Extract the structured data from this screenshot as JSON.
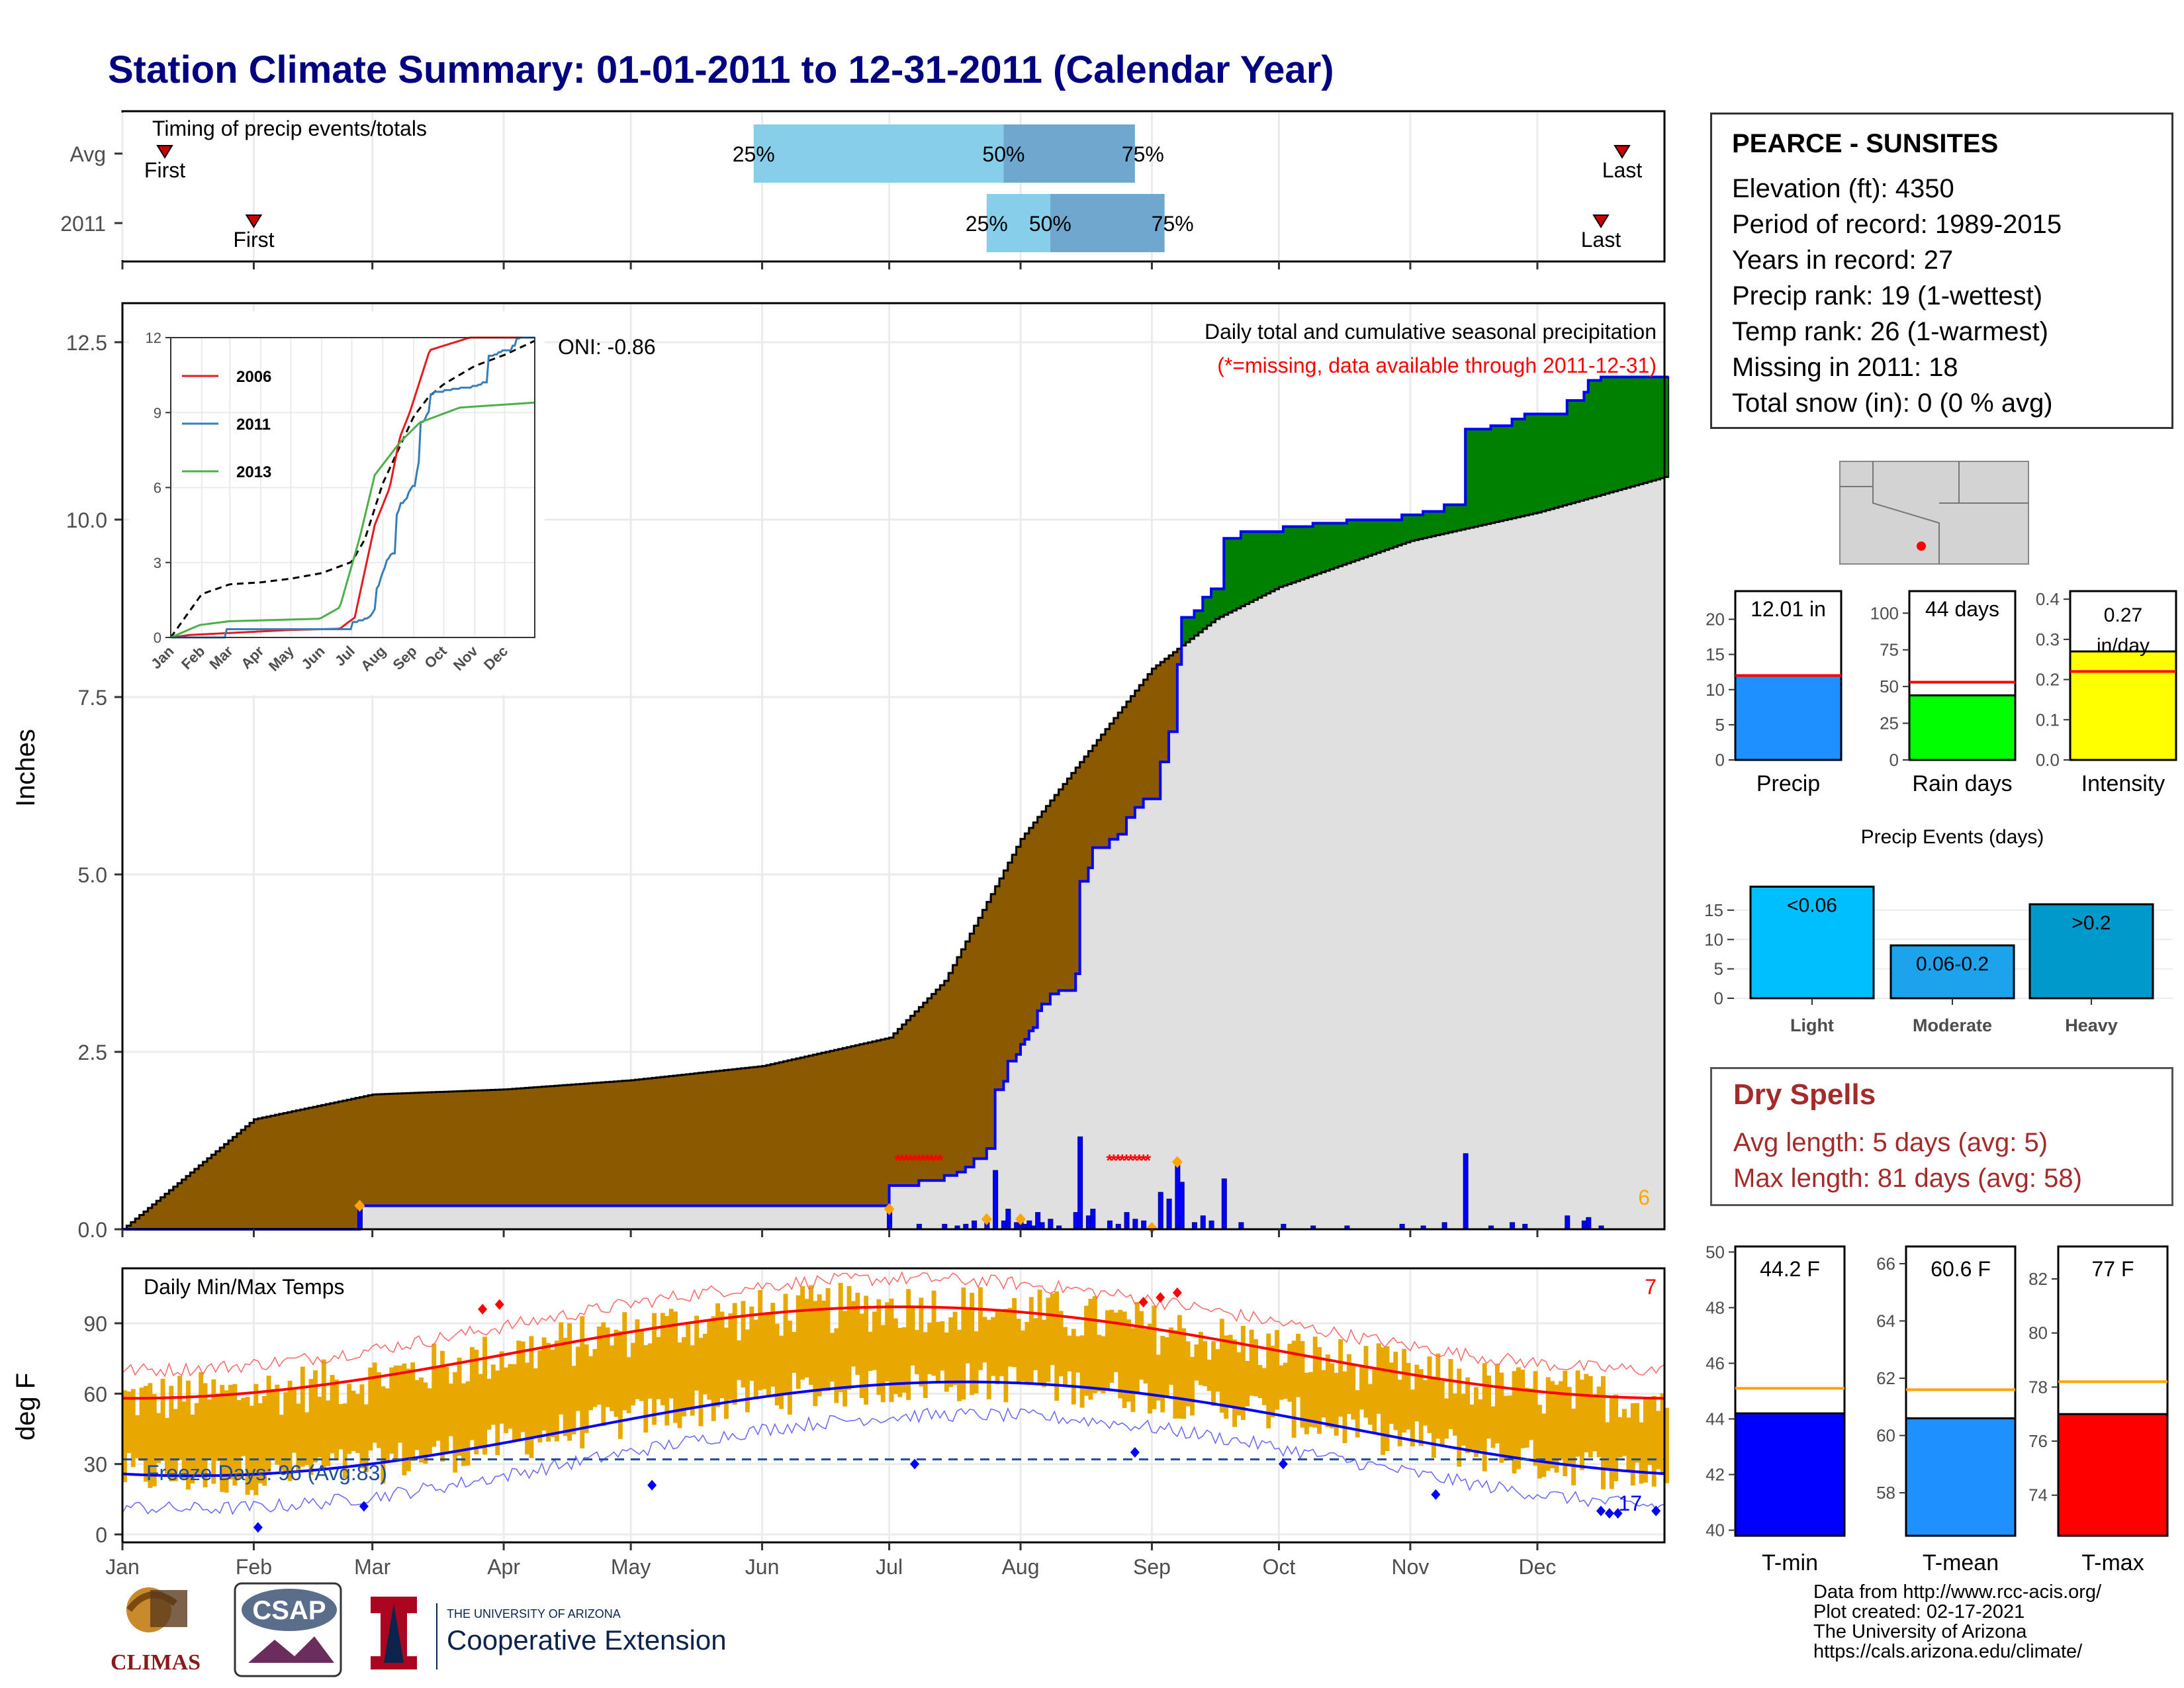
{
  "title": "Station Climate Summary: 01-01-2011 to 12-31-2011 (Calendar Year)",
  "timing": {
    "title": "Timing of precip events/totals",
    "rows": [
      {
        "label": "Avg",
        "first_day": 11,
        "last_day": 355,
        "p25_day": 150,
        "p50_day": 209,
        "p75_day": 240
      },
      {
        "label": "2011",
        "first_day": 32,
        "last_day": 350,
        "p25_day": 205,
        "p50_day": 220,
        "p75_day": 247
      }
    ],
    "first_label": "First",
    "last_label": "Last",
    "p25_label": "25%",
    "p50_label": "50%",
    "p75_label": "75%",
    "colors": {
      "q1": "#87CEEB",
      "q2": "#6FA8CF",
      "marker": "#CC0000"
    }
  },
  "precip_panel": {
    "title": "Daily total and cumulative seasonal precipitation",
    "subtitle": "(*=missing, data available through 2011-12-31)",
    "ylabel": "Inches",
    "yticks": [
      "0.0",
      "2.5",
      "5.0",
      "7.5",
      "10.0",
      "12.5"
    ],
    "oni": "ONI: -0.86",
    "count_label": "6",
    "colors": {
      "deficit": "#8B5A00",
      "surplus": "#008000",
      "normal": "#E0E0E0",
      "line": "#0000FF",
      "missing": "#FF0000",
      "extreme": "#FFA500"
    }
  },
  "inset": {
    "yticks": [
      "0",
      "3",
      "6",
      "9",
      "12"
    ],
    "xticks": [
      "Jan",
      "Feb",
      "Mar",
      "Apr",
      "May",
      "Jun",
      "Jul",
      "Aug",
      "Sep",
      "Oct",
      "Nov",
      "Dec"
    ],
    "legend": [
      {
        "name": "2006",
        "color": "#E41A1C"
      },
      {
        "name": "2011",
        "color": "#377EB8"
      },
      {
        "name": "2013",
        "color": "#4DAF4A"
      }
    ]
  },
  "temp_panel": {
    "title": "Daily Min/Max Temps",
    "ylabel": "deg F",
    "yticks": [
      "0",
      "30",
      "60",
      "90"
    ],
    "freeze_text": "Freeze Days: 96 (Avg:83)",
    "hot_count": "7",
    "cold_count": "17",
    "colors": {
      "bars": "#E8A800",
      "max": "#FF0000",
      "min": "#0000FF",
      "freeze": "#1F4E99"
    }
  },
  "months": [
    "Jan",
    "Feb",
    "Mar",
    "Apr",
    "May",
    "Jun",
    "Jul",
    "Aug",
    "Sep",
    "Oct",
    "Nov",
    "Dec"
  ],
  "station": {
    "name": "PEARCE - SUNSITES",
    "lines": [
      "Elevation (ft): 4350",
      "Period of record: 1989-2015",
      "Years in record: 27",
      "Precip rank: 19 (1-wettest)",
      "Temp rank: 26 (1-warmest)",
      "Missing in 2011: 18",
      "Total snow (in): 0 (0 % avg)"
    ]
  },
  "mini_bars": [
    {
      "label": "Precip",
      "value_text": "12.01 in",
      "value": 12.01,
      "avg": 12.0,
      "yticks": [
        "0",
        "5",
        "10",
        "15",
        "20"
      ],
      "ymax": 24,
      "color": "#1E90FF"
    },
    {
      "label": "Rain days",
      "value_text": "44 days",
      "value": 44,
      "avg": 53,
      "yticks": [
        "0",
        "25",
        "50",
        "75",
        "100"
      ],
      "ymax": 115,
      "color": "#00FF00"
    },
    {
      "label": "Intensity",
      "value_text": "0.27 in/day",
      "value": 0.27,
      "avg": 0.22,
      "yticks": [
        "0.0",
        "0.1",
        "0.2",
        "0.3",
        "0.4"
      ],
      "ymax": 0.42,
      "color": "#FFFF00"
    }
  ],
  "events": {
    "title": "Precip Events (days)",
    "yticks": [
      "0",
      "5",
      "10",
      "15"
    ],
    "bars": [
      {
        "label": "Light",
        "text": "<0.06",
        "value": 19,
        "color": "#00BFFF"
      },
      {
        "label": "Moderate",
        "text": "0.06-0.2",
        "value": 9,
        "color": "#1CA3EC"
      },
      {
        "label": "Heavy",
        "text": ">0.2",
        "value": 16,
        "color": "#0099CC"
      }
    ]
  },
  "dry_spells": {
    "title": "Dry Spells",
    "lines": [
      "Avg length: 5 days (avg: 5)",
      "Max length: 81 days (avg: 58)"
    ]
  },
  "temp_bars": [
    {
      "label": "T-min",
      "value_text": "44.2 F",
      "value": 44.2,
      "avg": 45.1,
      "ymin": 39.8,
      "ymax": 50.2,
      "yticks": [
        "40",
        "42",
        "44",
        "46",
        "48",
        "50"
      ],
      "color": "#0000FF"
    },
    {
      "label": "T-mean",
      "value_text": "60.6 F",
      "value": 60.6,
      "avg": 61.6,
      "ymin": 56.5,
      "ymax": 66.6,
      "yticks": [
        "58",
        "60",
        "62",
        "64",
        "66"
      ],
      "color": "#1E90FF"
    },
    {
      "label": "T-max",
      "value_text": "77 F",
      "value": 77,
      "avg": 78.2,
      "ymin": 72.5,
      "ymax": 83.2,
      "yticks": [
        "74",
        "76",
        "78",
        "80",
        "82"
      ],
      "color": "#FF0000"
    }
  ],
  "logos": {
    "climas": "CLIMAS",
    "csap": "CSAP",
    "ua_small": "THE UNIVERSITY OF ARIZONA",
    "ua_big": "Cooperative Extension"
  },
  "credits": [
    "Data from http://www.rcc-acis.org/",
    "Plot created: 02-17-2021",
    "The University of Arizona",
    "https://cals.arizona.edu/climate/"
  ]
}
